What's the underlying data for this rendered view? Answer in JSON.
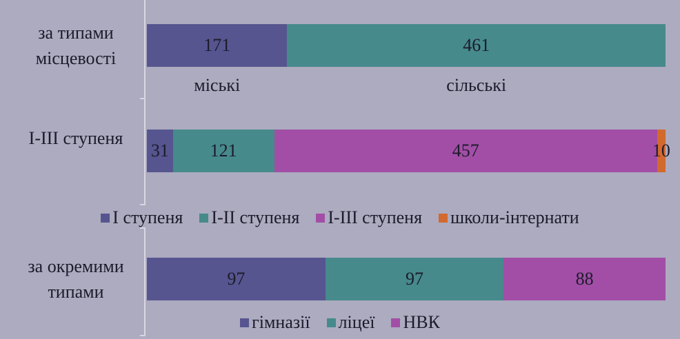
{
  "chart_data": [
    {
      "type": "stacked-bar",
      "legend": "under-segments",
      "categories": [
        "за типами місцевості"
      ],
      "series": [
        {
          "name": "міські",
          "color": "#56558f",
          "values": [
            171
          ]
        },
        {
          "name": "сільські",
          "color": "#468a8c",
          "values": [
            461
          ]
        }
      ]
    },
    {
      "type": "stacked-bar",
      "legend": "bottom",
      "categories": [
        "І-ІІІ ступеня"
      ],
      "series": [
        {
          "name": "І ступеня",
          "color": "#56558f",
          "values": [
            31
          ]
        },
        {
          "name": "І-ІІ ступеня",
          "color": "#468a8c",
          "values": [
            121
          ]
        },
        {
          "name": "І-ІІІ ступеня",
          "color": "#a24ea6",
          "values": [
            457
          ]
        },
        {
          "name": "школи-інтернати",
          "color": "#d2692e",
          "values": [
            10
          ]
        }
      ]
    },
    {
      "type": "stacked-bar",
      "legend": "bottom",
      "categories": [
        "за окремими типами"
      ],
      "series": [
        {
          "name": "гімназії",
          "color": "#56558f",
          "values": [
            97
          ]
        },
        {
          "name": "ліцеї",
          "color": "#468a8c",
          "values": [
            97
          ]
        },
        {
          "name": "НВК",
          "color": "#a24ea6",
          "values": [
            88
          ]
        }
      ]
    }
  ]
}
